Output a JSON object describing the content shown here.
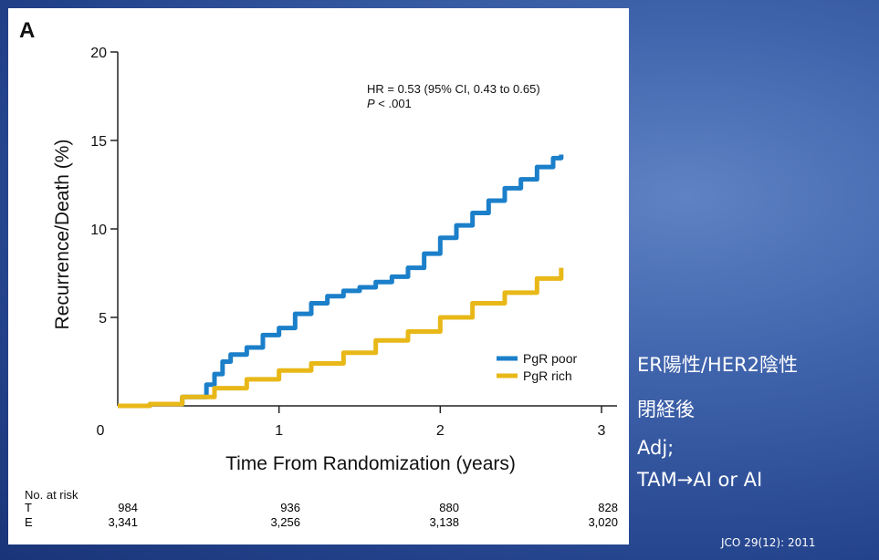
{
  "panel_label": "A",
  "annotation": {
    "hr_text": "HR = 0.53 (95% CI, 0.43 to 0.65)",
    "p_label": "P",
    "p_value": " < .001"
  },
  "chart_data": {
    "type": "line",
    "xlabel": "Time From Randomization (years)",
    "ylabel": "Recurrence/Death (%)",
    "xlim": [
      0,
      3
    ],
    "ylim": [
      0,
      20
    ],
    "xticks": [
      0,
      1,
      2,
      3
    ],
    "yticks": [
      5,
      10,
      15,
      20
    ],
    "x_tick_labels": [
      "0",
      "1",
      "2",
      "3"
    ],
    "y_tick_labels": [
      "5",
      "10",
      "15",
      "20"
    ],
    "legend_position": "bottom-right",
    "series": [
      {
        "name": "PgR poor",
        "color": "#1b7fc9",
        "points": [
          [
            0,
            0
          ],
          [
            0.2,
            0.1
          ],
          [
            0.4,
            0.5
          ],
          [
            0.55,
            1.2
          ],
          [
            0.6,
            1.8
          ],
          [
            0.65,
            2.5
          ],
          [
            0.7,
            2.9
          ],
          [
            0.8,
            3.3
          ],
          [
            0.9,
            4.0
          ],
          [
            1.0,
            4.4
          ],
          [
            1.1,
            5.2
          ],
          [
            1.2,
            5.8
          ],
          [
            1.3,
            6.2
          ],
          [
            1.4,
            6.5
          ],
          [
            1.5,
            6.7
          ],
          [
            1.6,
            7.0
          ],
          [
            1.7,
            7.3
          ],
          [
            1.8,
            7.8
          ],
          [
            1.9,
            8.6
          ],
          [
            2.0,
            9.5
          ],
          [
            2.1,
            10.2
          ],
          [
            2.2,
            10.9
          ],
          [
            2.3,
            11.6
          ],
          [
            2.4,
            12.3
          ],
          [
            2.5,
            12.8
          ],
          [
            2.6,
            13.5
          ],
          [
            2.7,
            14.0
          ],
          [
            2.75,
            14.2
          ]
        ]
      },
      {
        "name": "PgR rich",
        "color": "#e8b818",
        "points": [
          [
            0,
            0
          ],
          [
            0.2,
            0.1
          ],
          [
            0.4,
            0.5
          ],
          [
            0.6,
            1.0
          ],
          [
            0.8,
            1.5
          ],
          [
            1.0,
            2.0
          ],
          [
            1.2,
            2.4
          ],
          [
            1.4,
            3.0
          ],
          [
            1.6,
            3.7
          ],
          [
            1.8,
            4.2
          ],
          [
            2.0,
            5.0
          ],
          [
            2.2,
            5.8
          ],
          [
            2.4,
            6.4
          ],
          [
            2.6,
            7.2
          ],
          [
            2.75,
            7.8
          ]
        ]
      }
    ]
  },
  "risk_table": {
    "title": "No. at risk",
    "rows": [
      {
        "label": "T",
        "values": [
          "984",
          "936",
          "880",
          "828"
        ]
      },
      {
        "label": "E",
        "values": [
          "3,341",
          "3,256",
          "3,138",
          "3,020"
        ]
      }
    ]
  },
  "side_text": [
    "ER陽性/HER2陰性",
    "閉経後",
    "Adj;",
    "TAM→AI or AI"
  ],
  "citation": "JCO 29(12): 2011"
}
